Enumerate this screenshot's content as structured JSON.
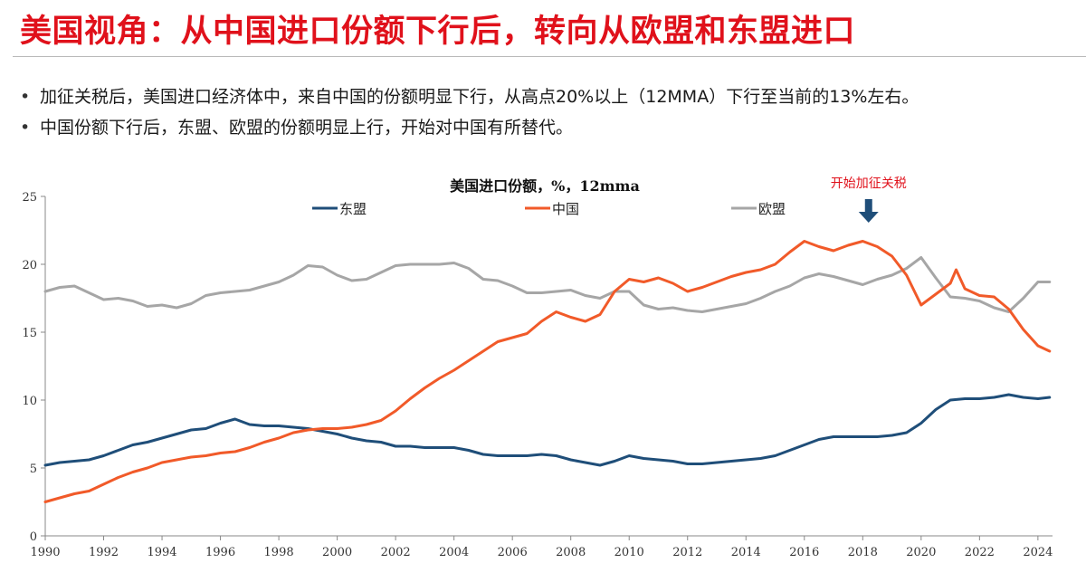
{
  "slide": {
    "title": "美国视角：从中国进口份额下行后，转向从欧盟和东盟进口",
    "bullets": [
      "加征关税后，美国进口经济体中，来自中国的份额明显下行，从高点20%以上（12MMA）下行至当前的13%左右。",
      "中国份额下行后，东盟、欧盟的份额明显上行，开始对中国有所替代。"
    ]
  },
  "chart_data": {
    "type": "line",
    "title": "美国进口份额，%，12mma",
    "xlabel": "",
    "ylabel": "",
    "xlim": [
      1990,
      2024.5
    ],
    "ylim": [
      0,
      25
    ],
    "x_ticks": [
      1990,
      1992,
      1994,
      1996,
      1998,
      2000,
      2002,
      2004,
      2006,
      2008,
      2010,
      2012,
      2014,
      2016,
      2018,
      2020,
      2022,
      2024
    ],
    "y_ticks": [
      0,
      5,
      10,
      15,
      20,
      25
    ],
    "grid": false,
    "legend_position": "top-center",
    "annotation": {
      "text": "开始加征关税",
      "x": 2018.2,
      "y": 22.5
    },
    "series": [
      {
        "name": "东盟",
        "color": "#1f4e79",
        "x": [
          1990,
          1990.5,
          1991,
          1991.5,
          1992,
          1992.5,
          1993,
          1993.5,
          1994,
          1994.5,
          1995,
          1995.5,
          1996,
          1996.5,
          1997,
          1997.5,
          1998,
          1998.5,
          1999,
          1999.5,
          2000,
          2000.5,
          2001,
          2001.5,
          2002,
          2002.5,
          2003,
          2003.5,
          2004,
          2004.5,
          2005,
          2005.5,
          2006,
          2006.5,
          2007,
          2007.5,
          2008,
          2008.5,
          2009,
          2009.5,
          2010,
          2010.5,
          2011,
          2011.5,
          2012,
          2012.5,
          2013,
          2013.5,
          2014,
          2014.5,
          2015,
          2015.5,
          2016,
          2016.5,
          2017,
          2017.5,
          2018,
          2018.5,
          2019,
          2019.5,
          2020,
          2020.5,
          2021,
          2021.5,
          2022,
          2022.5,
          2023,
          2023.5,
          2024,
          2024.4
        ],
        "values": [
          5.2,
          5.4,
          5.5,
          5.6,
          5.9,
          6.3,
          6.7,
          6.9,
          7.2,
          7.5,
          7.8,
          7.9,
          8.3,
          8.6,
          8.2,
          8.1,
          8.1,
          8.0,
          7.9,
          7.7,
          7.5,
          7.2,
          7.0,
          6.9,
          6.6,
          6.6,
          6.5,
          6.5,
          6.5,
          6.3,
          6.0,
          5.9,
          5.9,
          5.9,
          6.0,
          5.9,
          5.6,
          5.4,
          5.2,
          5.5,
          5.9,
          5.7,
          5.6,
          5.5,
          5.3,
          5.3,
          5.4,
          5.5,
          5.6,
          5.7,
          5.9,
          6.3,
          6.7,
          7.1,
          7.3,
          7.3,
          7.3,
          7.3,
          7.4,
          7.6,
          8.3,
          9.3,
          10.0,
          10.1,
          10.1,
          10.2,
          10.4,
          10.2,
          10.1,
          10.2
        ]
      },
      {
        "name": "中国",
        "color": "#f15a29",
        "x": [
          1990,
          1990.5,
          1991,
          1991.5,
          1992,
          1992.5,
          1993,
          1993.5,
          1994,
          1994.5,
          1995,
          1995.5,
          1996,
          1996.5,
          1997,
          1997.5,
          1998,
          1998.5,
          1999,
          1999.5,
          2000,
          2000.5,
          2001,
          2001.5,
          2002,
          2002.5,
          2003,
          2003.5,
          2004,
          2004.5,
          2005,
          2005.5,
          2006,
          2006.5,
          2007,
          2007.5,
          2008,
          2008.5,
          2009,
          2009.5,
          2010,
          2010.5,
          2011,
          2011.5,
          2012,
          2012.5,
          2013,
          2013.5,
          2014,
          2014.5,
          2015,
          2015.5,
          2016,
          2016.5,
          2017,
          2017.5,
          2018,
          2018.5,
          2019,
          2019.5,
          2020,
          2020.5,
          2021,
          2021.2,
          2021.5,
          2022,
          2022.5,
          2023,
          2023.5,
          2024,
          2024.4
        ],
        "values": [
          2.5,
          2.8,
          3.1,
          3.3,
          3.8,
          4.3,
          4.7,
          5.0,
          5.4,
          5.6,
          5.8,
          5.9,
          6.1,
          6.2,
          6.5,
          6.9,
          7.2,
          7.6,
          7.8,
          7.9,
          7.9,
          8.0,
          8.2,
          8.5,
          9.2,
          10.1,
          10.9,
          11.6,
          12.2,
          12.9,
          13.6,
          14.3,
          14.6,
          14.9,
          15.8,
          16.5,
          16.1,
          15.8,
          16.3,
          18.0,
          18.9,
          18.7,
          19.0,
          18.6,
          18.0,
          18.3,
          18.7,
          19.1,
          19.4,
          19.6,
          20.0,
          20.9,
          21.7,
          21.3,
          21.0,
          21.4,
          21.7,
          21.3,
          20.6,
          19.2,
          17.0,
          17.8,
          18.6,
          19.6,
          18.2,
          17.7,
          17.6,
          16.7,
          15.2,
          14.0,
          13.6
        ]
      },
      {
        "name": "欧盟",
        "color": "#a6a6a6",
        "x": [
          1990,
          1990.5,
          1991,
          1991.5,
          1992,
          1992.5,
          1993,
          1993.5,
          1994,
          1994.5,
          1995,
          1995.5,
          1996,
          1996.5,
          1997,
          1997.5,
          1998,
          1998.5,
          1999,
          1999.5,
          2000,
          2000.5,
          2001,
          2001.5,
          2002,
          2002.5,
          2003,
          2003.5,
          2004,
          2004.5,
          2005,
          2005.5,
          2006,
          2006.5,
          2007,
          2007.5,
          2008,
          2008.5,
          2009,
          2009.5,
          2010,
          2010.5,
          2011,
          2011.5,
          2012,
          2012.5,
          2013,
          2013.5,
          2014,
          2014.5,
          2015,
          2015.5,
          2016,
          2016.5,
          2017,
          2017.5,
          2018,
          2018.5,
          2019,
          2019.5,
          2020,
          2020.5,
          2021,
          2021.5,
          2022,
          2022.5,
          2023,
          2023.5,
          2024,
          2024.4
        ],
        "values": [
          18.0,
          18.3,
          18.4,
          17.9,
          17.4,
          17.5,
          17.3,
          16.9,
          17.0,
          16.8,
          17.1,
          17.7,
          17.9,
          18.0,
          18.1,
          18.4,
          18.7,
          19.2,
          19.9,
          19.8,
          19.2,
          18.8,
          18.9,
          19.4,
          19.9,
          20.0,
          20.0,
          20.0,
          20.1,
          19.7,
          18.9,
          18.8,
          18.4,
          17.9,
          17.9,
          18.0,
          18.1,
          17.7,
          17.5,
          18.0,
          18.0,
          17.0,
          16.7,
          16.8,
          16.6,
          16.5,
          16.7,
          16.9,
          17.1,
          17.5,
          18.0,
          18.4,
          19.0,
          19.3,
          19.1,
          18.8,
          18.5,
          18.9,
          19.2,
          19.7,
          20.5,
          19.0,
          17.6,
          17.5,
          17.3,
          16.8,
          16.5,
          17.5,
          18.7,
          18.7
        ]
      }
    ]
  }
}
